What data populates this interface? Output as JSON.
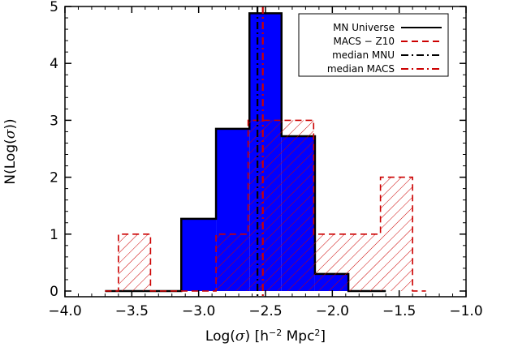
{
  "chart_data": {
    "type": "histogram",
    "xlabel": {
      "pre": "Log(",
      "sigma": "σ",
      "mid": ")  [h",
      "sup1": "−2",
      "mid2": " Mpc",
      "sup2": "2",
      "post": "]"
    },
    "ylabel": {
      "pre": "N(Log(",
      "sigma": "σ",
      "post": "))"
    },
    "xlim": [
      -4.0,
      -1.0
    ],
    "ylim": [
      -0.1,
      5.0
    ],
    "x_ticks": [
      -4.0,
      -3.5,
      -3.0,
      -2.5,
      -2.0,
      -1.5,
      -1.0
    ],
    "x_tick_labels": [
      "−4.0",
      "−3.5",
      "−3.0",
      "−2.5",
      "−2.0",
      "−1.5",
      "−1.0"
    ],
    "y_ticks": [
      0,
      1,
      2,
      3,
      4,
      5
    ],
    "y_tick_labels": [
      "0",
      "1",
      "2",
      "3",
      "4",
      "5"
    ],
    "series": [
      {
        "name": "MN Universe",
        "color": "#0000ff",
        "edge_color": "#000000",
        "line_style": "solid",
        "bins": [
          {
            "x0": -3.7,
            "x1": -3.13,
            "value": 0
          },
          {
            "x0": -3.13,
            "x1": -2.87,
            "value": 1.27
          },
          {
            "x0": -2.87,
            "x1": -2.62,
            "value": 2.85
          },
          {
            "x0": -2.62,
            "x1": -2.38,
            "value": 4.88
          },
          {
            "x0": -2.38,
            "x1": -2.13,
            "value": 2.72
          },
          {
            "x0": -2.13,
            "x1": -1.88,
            "value": 0.3
          },
          {
            "x0": -1.88,
            "x1": -1.6,
            "value": 0
          }
        ]
      },
      {
        "name": "MACS − Z10",
        "color": "#cc0000",
        "line_style": "dashed",
        "hatch": true,
        "bins": [
          {
            "x0": -3.7,
            "x1": -3.6,
            "value": 0
          },
          {
            "x0": -3.6,
            "x1": -3.36,
            "value": 1
          },
          {
            "x0": -3.36,
            "x1": -3.12,
            "value": 0
          },
          {
            "x0": -3.12,
            "x1": -2.87,
            "value": 0
          },
          {
            "x0": -2.87,
            "x1": -2.63,
            "value": 1
          },
          {
            "x0": -2.63,
            "x1": -2.38,
            "value": 3
          },
          {
            "x0": -2.38,
            "x1": -2.14,
            "value": 3
          },
          {
            "x0": -2.14,
            "x1": -1.89,
            "value": 1
          },
          {
            "x0": -1.89,
            "x1": -1.64,
            "value": 1
          },
          {
            "x0": -1.64,
            "x1": -1.4,
            "value": 2
          },
          {
            "x0": -1.4,
            "x1": -1.3,
            "value": 0
          }
        ]
      }
    ],
    "medians": [
      {
        "name": "median MNU",
        "x": -2.56,
        "color": "#000000",
        "line_style": "dashdot"
      },
      {
        "name": "median MACS",
        "x": -2.52,
        "color": "#cc0000",
        "line_style": "dashdot"
      }
    ],
    "legend": {
      "placement": "top-right",
      "entries": [
        {
          "label": "MN Universe",
          "color": "#000000",
          "line_style": "solid"
        },
        {
          "label": "MACS − Z10",
          "color": "#cc0000",
          "line_style": "dashed"
        },
        {
          "label": "median MNU",
          "color": "#000000",
          "line_style": "dashdot"
        },
        {
          "label": "median MACS",
          "color": "#cc0000",
          "line_style": "dashdot"
        }
      ]
    },
    "grid": false
  }
}
